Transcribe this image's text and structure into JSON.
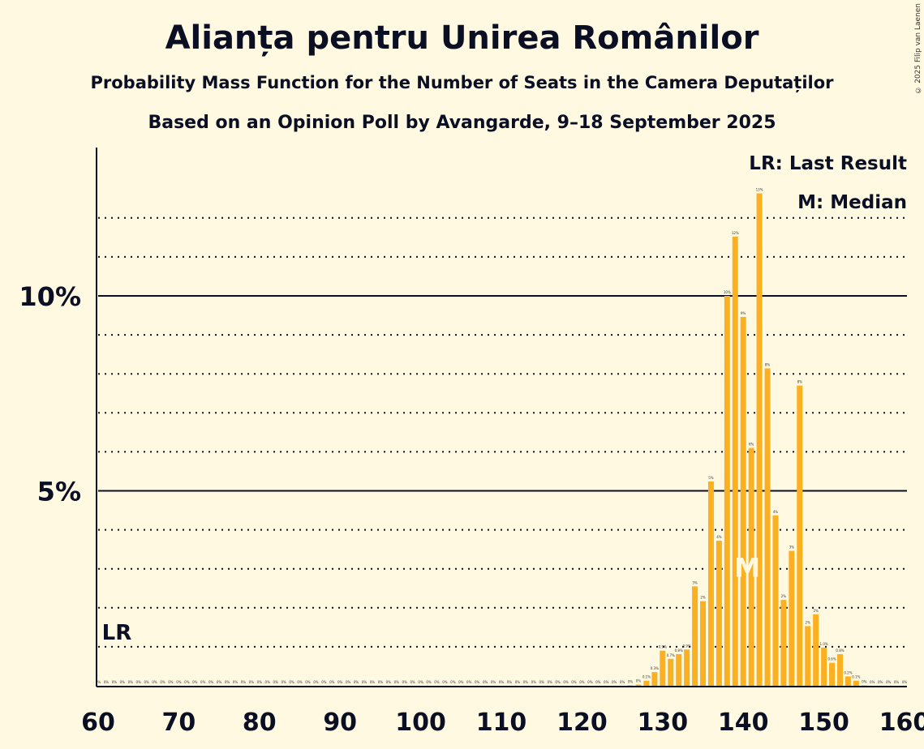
{
  "title": "Alianța pentru Unirea Românilor",
  "subtitle": "Probability Mass Function for the Number of Seats in the Camera Deputaților",
  "subtitle2": "Based on an Opinion Poll by Avangarde, 9–18 September 2025",
  "copyright": "© 2025 Filip van Laenen",
  "chart_data": {
    "type": "bar",
    "xlim": [
      60,
      160
    ],
    "ylim": [
      0,
      13
    ],
    "x_ticks": [
      60,
      70,
      80,
      90,
      100,
      110,
      120,
      130,
      140,
      150,
      160
    ],
    "y_ticks": [
      {
        "value": 5,
        "label": "5%"
      },
      {
        "value": 10,
        "label": "10%"
      }
    ],
    "grid": "dotted every 1%, solid at 5% and 10%",
    "bar_color": "#fbb021",
    "x_start": 60,
    "values": [
      0,
      0,
      0,
      0,
      0,
      0,
      0,
      0,
      0,
      0,
      0,
      0,
      0,
      0,
      0,
      0,
      0,
      0,
      0,
      0,
      0,
      0,
      0,
      0,
      0,
      0,
      0,
      0,
      0,
      0,
      0,
      0,
      0,
      0,
      0,
      0,
      0,
      0,
      0,
      0,
      0,
      0,
      0,
      0,
      0,
      0,
      0,
      0,
      0,
      0,
      0,
      0,
      0,
      0,
      0,
      0,
      0,
      0,
      0,
      0,
      0,
      0,
      0,
      0,
      0,
      0,
      0.01,
      0.03,
      0.13,
      0.35,
      0.9,
      0.69,
      0.81,
      0.93,
      2.55,
      2.17,
      5.24,
      3.72,
      10.0,
      11.52,
      9.46,
      6.1,
      12.63,
      8.14,
      4.37,
      2.2,
      3.46,
      7.7,
      1.53,
      1.83,
      0.98,
      0.59,
      0.81,
      0.24,
      0.13,
      0.01,
      0,
      0,
      0,
      0,
      0
    ],
    "last_result": {
      "seat": 61,
      "label": "LR"
    },
    "median": {
      "seat": 141,
      "label": "M"
    },
    "legend": [
      "LR: Last Result",
      "M: Median"
    ],
    "legend_position": "top-right"
  }
}
